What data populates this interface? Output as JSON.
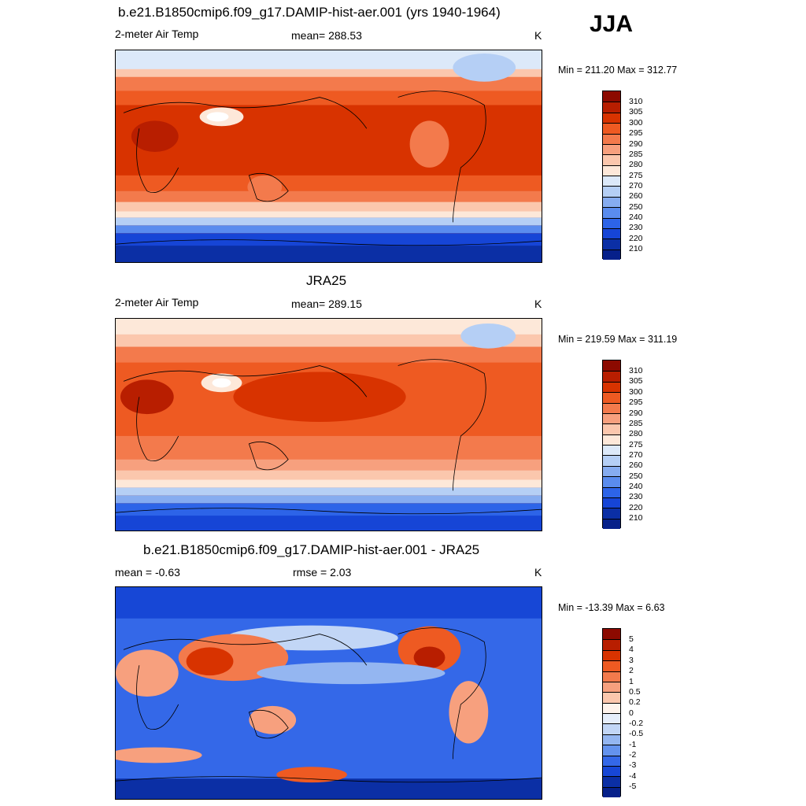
{
  "season": "JJA",
  "panels": [
    {
      "title": "b.e21.B1850cmip6.f09_g17.DAMIP-hist-aer.001 (yrs 1940-1964)",
      "left": "2-meter Air Temp",
      "center": "mean= 288.53",
      "right": "K",
      "minmax": "Min = 211.20 Max = 312.77",
      "kind": "abs",
      "colorbar": [
        "310",
        "305",
        "300",
        "295",
        "290",
        "285",
        "280",
        "275",
        "270",
        "260",
        "250",
        "240",
        "230",
        "220",
        "210"
      ]
    },
    {
      "title": "JRA25",
      "left": "2-meter Air Temp",
      "center": "mean= 289.15",
      "right": "K",
      "minmax": "Min = 219.59 Max = 311.19",
      "kind": "abs",
      "colorbar": [
        "310",
        "305",
        "300",
        "295",
        "290",
        "285",
        "280",
        "275",
        "270",
        "260",
        "250",
        "240",
        "230",
        "220",
        "210"
      ]
    },
    {
      "title": "b.e21.B1850cmip6.f09_g17.DAMIP-hist-aer.001 - JRA25",
      "left": "mean =  -0.63",
      "center": "rmse =   2.03",
      "right": "K",
      "minmax": "Min = -13.39 Max =   6.63",
      "kind": "diff",
      "colorbar": [
        "5",
        "4",
        "3",
        "2",
        "1",
        "0.5",
        "0.2",
        "0",
        "-0.2",
        "-0.5",
        "-1",
        "-2",
        "-3",
        "-4",
        "-5"
      ]
    }
  ],
  "palette_abs": [
    "#8c0a00",
    "#b81e00",
    "#d83300",
    "#ee5a22",
    "#f37a4c",
    "#f7a07e",
    "#fbc7ad",
    "#fde8d9",
    "#dce9f9",
    "#b5cff5",
    "#86acf0",
    "#5a8cee",
    "#2d64e8",
    "#1645d6",
    "#0b2fa5",
    "#06208a"
  ],
  "palette_diff": [
    "#8c0a00",
    "#b81e00",
    "#d83300",
    "#ee5a22",
    "#f37a4c",
    "#f7a07e",
    "#fbc7ad",
    "#fef3ec",
    "#e6eefb",
    "#c2d6f6",
    "#94b6f1",
    "#6493ee",
    "#3468e8",
    "#1747d6",
    "#0b2fa5",
    "#06208a"
  ]
}
